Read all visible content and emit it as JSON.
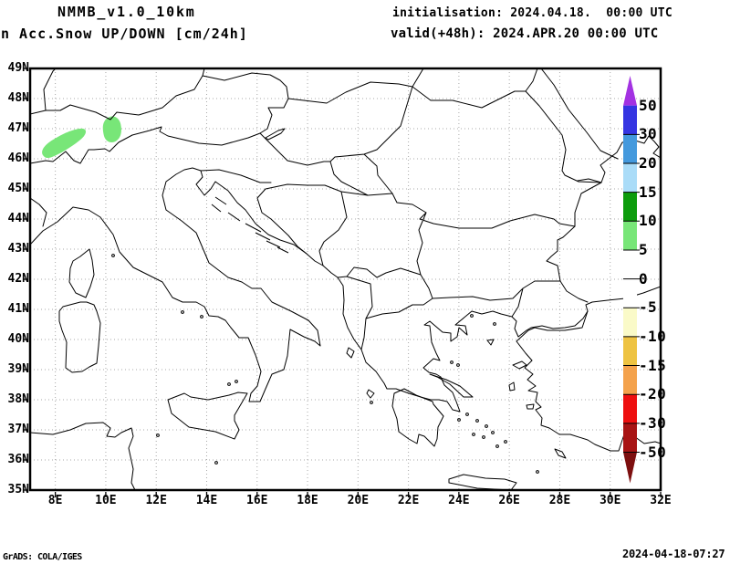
{
  "header": {
    "model": "NMMB_v1.0_10km",
    "product": "n Acc.Snow UP/DOWN [cm/24h]",
    "init_line": "initialisation: 2024.04.18.  00:00 UTC",
    "valid_line": "valid(+48h): 2024.APR.20 00:00 UTC"
  },
  "footer": {
    "left": "GrADS: COLA/IGES",
    "right": "2024-04-18-07:27"
  },
  "axes": {
    "x_labels": [
      "8E",
      "10E",
      "12E",
      "14E",
      "16E",
      "18E",
      "20E",
      "22E",
      "24E",
      "26E",
      "28E",
      "30E",
      "32E"
    ],
    "y_labels": [
      "49N",
      "48N",
      "47N",
      "46N",
      "45N",
      "44N",
      "43N",
      "42N",
      "41N",
      "40N",
      "39N",
      "38N",
      "37N",
      "36N",
      "35N"
    ]
  },
  "colorbar": {
    "tick_labels": [
      "50",
      "30",
      "20",
      "15",
      "10",
      "5",
      "0",
      "-5",
      "-10",
      "-15",
      "-20",
      "-30",
      "-50"
    ],
    "segments": [
      {
        "range": "30..50",
        "color": "#3535e2"
      },
      {
        "range": "20..30",
        "color": "#4499dd"
      },
      {
        "range": "15..20",
        "color": "#aadcf8"
      },
      {
        "range": "10..15",
        "color": "#0c9c0c"
      },
      {
        "range": "5..10",
        "color": "#78e678"
      },
      {
        "range": "0..5",
        "color": "#ffffff"
      },
      {
        "range": "-5..0",
        "color": "#ffffff"
      },
      {
        "range": "-10..-5",
        "color": "#fafac8"
      },
      {
        "range": "-15..-10",
        "color": "#eec342"
      },
      {
        "range": "-20..-15",
        "color": "#f4a24c"
      },
      {
        "range": "-30..-20",
        "color": "#ee0f0f"
      },
      {
        "range": "-50..-30",
        "color": "#a81414"
      }
    ],
    "over_color": "#a332e2",
    "under_color": "#7d0f0f"
  },
  "snow_patches": {
    "fill": "#78e678",
    "areas": [
      {
        "name": "western-alps",
        "approx_location": "7.5-10E, 46-46.8N",
        "value_cm": "5-10"
      },
      {
        "name": "eastern-alps",
        "approx_location": "9.8-10.7E, 46.6-47.4N",
        "value_cm": "5-10"
      }
    ]
  },
  "chart_data": {
    "type": "filled-contour-map",
    "title": "Acc.Snow UP/DOWN [cm/24h]",
    "model": "NMMB_v1.0_10km",
    "units": "cm/24h",
    "lon_range": [
      7,
      32
    ],
    "lat_range": [
      35,
      49
    ],
    "grid": "on",
    "contour_levels": [
      -50,
      -30,
      -20,
      -15,
      -10,
      -5,
      0,
      5,
      10,
      15,
      20,
      30,
      50
    ],
    "data_features": [
      {
        "area": "Western Alps (Switzerland)",
        "value": "5-10 cm snow accumulation"
      },
      {
        "area": "Eastern Alps (Austria/Switzerland border)",
        "value": "5-10 cm snow accumulation"
      },
      {
        "area": "rest of domain",
        "value": "0 (no accumulation shown)"
      }
    ]
  },
  "map_style": {
    "grid_color": "#a9a9a9",
    "border_color": "#000000",
    "sea_fill": "#ffffff"
  }
}
